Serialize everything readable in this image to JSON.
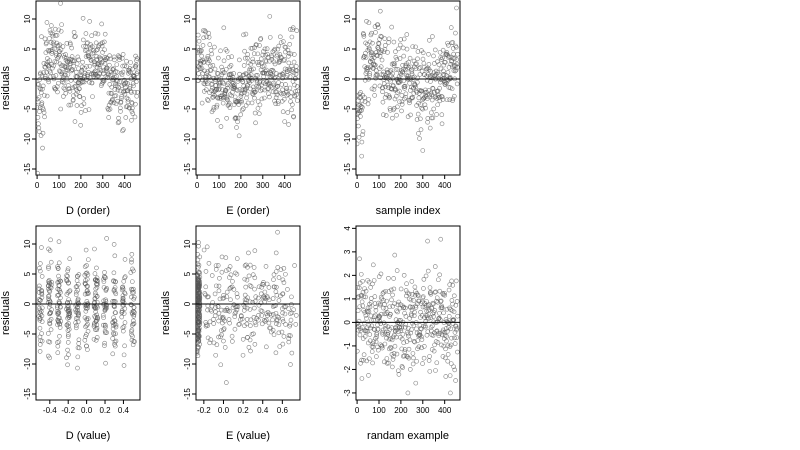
{
  "chart_data": [
    {
      "type": "scatter",
      "xlabel": "D (order)",
      "ylabel": "residuals",
      "xlim": [
        -5,
        470
      ],
      "ylim": [
        -16,
        13
      ],
      "x_ticks": [
        "0",
        "100",
        "200",
        "300",
        "400"
      ],
      "y_ticks": [
        "-15",
        "-10",
        "-5",
        "0",
        "5",
        "10"
      ],
      "reference_line_y": 0,
      "n_points": 460,
      "point_style": "open-circle",
      "trend": "sorted by D: negative residuals at low order, positive cluster mid/high order, spread roughly -15 to 12"
    },
    {
      "type": "scatter",
      "xlabel": "E (order)",
      "ylabel": "residuals",
      "xlim": [
        -5,
        470
      ],
      "ylim": [
        -16,
        13
      ],
      "x_ticks": [
        "0",
        "100",
        "200",
        "300",
        "400"
      ],
      "y_ticks": [
        "-15",
        "-10",
        "-5",
        "0",
        "5",
        "10"
      ],
      "reference_line_y": 0,
      "n_points": 460,
      "point_style": "open-circle",
      "trend": "sorted by E: band around 2 to 3 early, dip slightly below zero near order 150, rising spread at high order"
    },
    {
      "type": "scatter",
      "xlabel": "sample index",
      "ylabel": "residuals",
      "xlim": [
        -5,
        470
      ],
      "ylim": [
        -16,
        13
      ],
      "x_ticks": [
        "0",
        "100",
        "200",
        "300",
        "400"
      ],
      "y_ticks": [
        "-15",
        "-10",
        "-5",
        "0",
        "5",
        "10"
      ],
      "reference_line_y": 0,
      "n_points": 460,
      "point_style": "open-circle",
      "trend": "by sample index: low values at start, cluster near 4 around index 50-100, negative mid, positive near 420"
    },
    {
      "type": "scatter",
      "xlabel": "D (value)",
      "ylabel": "residuals",
      "xlim": [
        -0.55,
        0.58
      ],
      "ylim": [
        -16,
        13
      ],
      "x_ticks": [
        "-0.4",
        "-0.2",
        "0.0",
        "0.2",
        "0.4"
      ],
      "y_ticks": [
        "-15",
        "-10",
        "-5",
        "0",
        "5",
        "10"
      ],
      "reference_line_y": 0,
      "n_points": 460,
      "point_style": "open-circle",
      "trend": "vertical columns at discrete D values, residuals spread -15 to 12 around zero"
    },
    {
      "type": "scatter",
      "xlabel": "E (value)",
      "ylabel": "residuals",
      "xlim": [
        -0.28,
        0.78
      ],
      "ylim": [
        -16,
        13
      ],
      "x_ticks": [
        "-0.2",
        "0.0",
        "0.2",
        "0.4",
        "0.6"
      ],
      "y_ticks": [
        "-15",
        "-10",
        "-5",
        "0",
        "5",
        "10"
      ],
      "reference_line_y": 0,
      "n_points": 460,
      "point_style": "open-circle",
      "trend": "dense vertical stack at E near -0.25, sparser columns across 0 to 0.75"
    },
    {
      "type": "scatter",
      "xlabel": "randam example",
      "ylabel": "residuals",
      "xlim": [
        -5,
        470
      ],
      "ylim": [
        -3.3,
        4.1
      ],
      "x_ticks": [
        "0",
        "100",
        "200",
        "300",
        "400"
      ],
      "y_ticks": [
        "-3",
        "-2",
        "-1",
        "0",
        "1",
        "2",
        "3",
        "4"
      ],
      "reference_line_y": 0,
      "n_points": 460,
      "point_style": "open-circle",
      "trend": "random normal residuals with no structure, mostly within -2 to 2"
    }
  ]
}
